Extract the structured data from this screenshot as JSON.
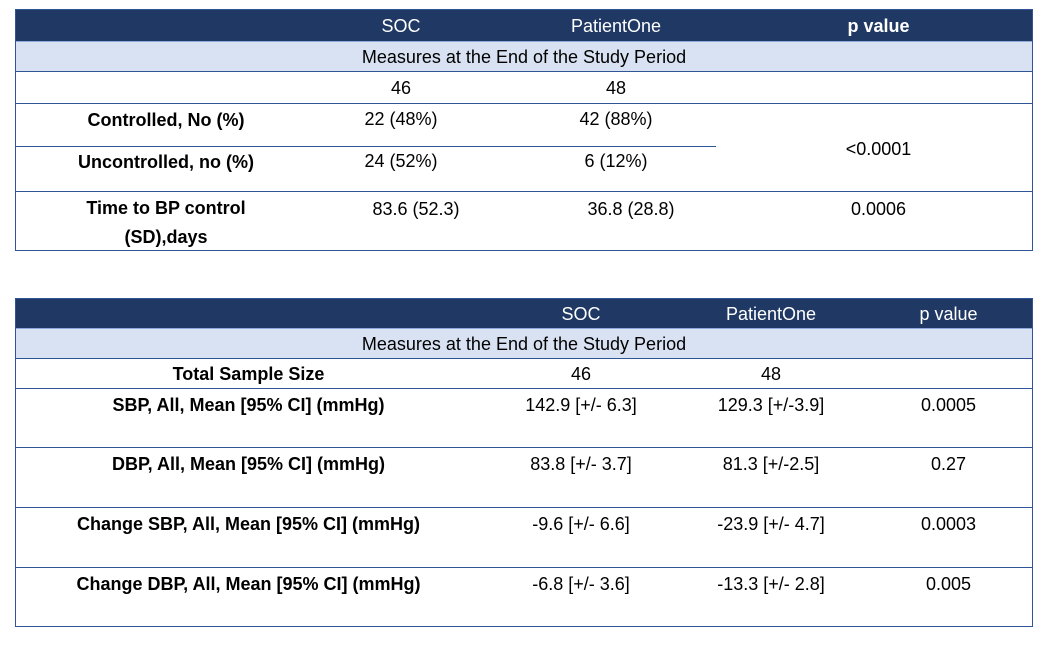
{
  "table1": {
    "headers": {
      "soc": "SOC",
      "patientone": "PatientOne",
      "pvalue": "p value"
    },
    "subheader": "Measures at the End of the Study Period",
    "rows": [
      {
        "label": "",
        "soc": "46",
        "patientone": "48",
        "pvalue": ""
      },
      {
        "label": "Controlled, No (%)",
        "soc": "22 (48%)",
        "patientone": "42 (88%)"
      },
      {
        "label": "Uncontrolled, no (%)",
        "soc": "24 (52%)",
        "patientone": "6 (12%)"
      },
      {
        "label_line1": "Time to BP control",
        "label_line2": "(SD),days",
        "soc": "83.6 (52.3)",
        "patientone": "36.8 (28.8)",
        "pvalue": "0.0006"
      }
    ],
    "merged_pvalue": "<0.0001"
  },
  "table2": {
    "headers": {
      "soc": "SOC",
      "patientone": "PatientOne",
      "pvalue": "p value"
    },
    "subheader": "Measures at the End of the Study Period",
    "rows": [
      {
        "label": "Total Sample Size",
        "soc": "46",
        "patientone": "48",
        "pvalue": ""
      },
      {
        "label": "SBP, All, Mean [95% CI] (mmHg)",
        "soc": "142.9 [+/- 6.3]",
        "patientone": "129.3 [+/-3.9]",
        "pvalue": "0.0005"
      },
      {
        "label": "DBP, All, Mean [95% CI] (mmHg)",
        "soc": "83.8 [+/- 3.7]",
        "patientone": "81.3 [+/-2.5]",
        "pvalue": "0.27"
      },
      {
        "label": "Change SBP,  All, Mean [95% CI] (mmHg)",
        "soc": "-9.6 [+/- 6.6]",
        "patientone": "-23.9 [+/- 4.7]",
        "pvalue": "0.0003"
      },
      {
        "label": "Change DBP,  All, Mean [95% CI] (mmHg)",
        "soc": "-6.8 [+/- 3.6]",
        "patientone": "-13.3 [+/- 2.8]",
        "pvalue": "0.005"
      }
    ]
  },
  "colors": {
    "header_bg": "#1f3864",
    "subheader_bg": "#d9e2f3",
    "border": "#2f5597"
  }
}
